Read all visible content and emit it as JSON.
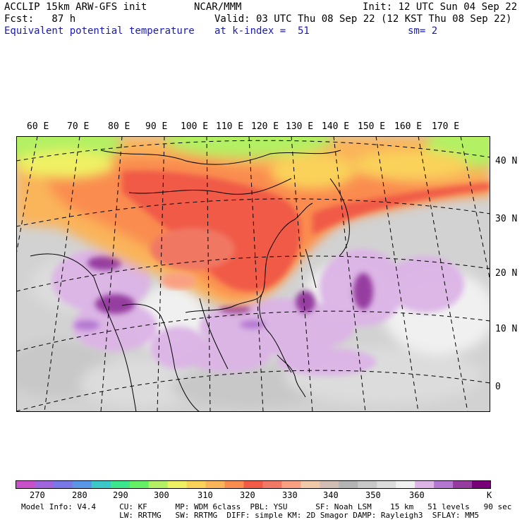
{
  "header": {
    "line1_left": "ACCLIP 15km ARW-GFS init",
    "line1_mid": "NCAR/MMM",
    "line1_right": "Init: 12 UTC Sun 04 Sep 22",
    "line2_left": "Fcst:   87 h",
    "line2_right": "Valid: 03 UTC Thu 08 Sep 22 (12 KST Thu 08 Sep 22)",
    "line3_left": "Equivalent potential temperature",
    "line3_mid": "at k-index =  51",
    "line3_right": "sm= 2"
  },
  "map": {
    "lon_labels": [
      "60 E",
      "70 E",
      "80 E",
      "90 E",
      "100 E",
      "110 E",
      "120 E",
      "130 E",
      "140 E",
      "150 E",
      "160 E",
      "170 E"
    ],
    "lat_labels": [
      "40 N",
      "30 N",
      "20 N",
      "10 N",
      "0"
    ]
  },
  "colorbar": {
    "unit": "K",
    "ticks": [
      "270",
      "280",
      "290",
      "300",
      "310",
      "320",
      "330",
      "340",
      "350",
      "360"
    ],
    "colors": [
      "#c850c8",
      "#a064dc",
      "#7878e6",
      "#5a96e6",
      "#3cc8c8",
      "#3ce68c",
      "#64f064",
      "#b4f064",
      "#f0f064",
      "#fad25a",
      "#fab45a",
      "#fa8c50",
      "#f05a46",
      "#f07864",
      "#faa082",
      "#f0c8aa",
      "#d2beb4",
      "#b4b4b4",
      "#c8c8c8",
      "#dcdcdc",
      "#f0f0f0",
      "#dcb4e6",
      "#b478d2",
      "#963ca0",
      "#780078"
    ]
  },
  "footer": {
    "line1": "Model Info: V4.4     CU: KF      MP: WDM 6class  PBL: YSU      SF: Noah LSM    15 km   51 levels   90 sec",
    "line2": "                     LW: RRTMG   SW: RRTMG  DIFF: simple KM: 2D Smagor DAMP: Rayleigh3  SFLAY: MM5"
  }
}
